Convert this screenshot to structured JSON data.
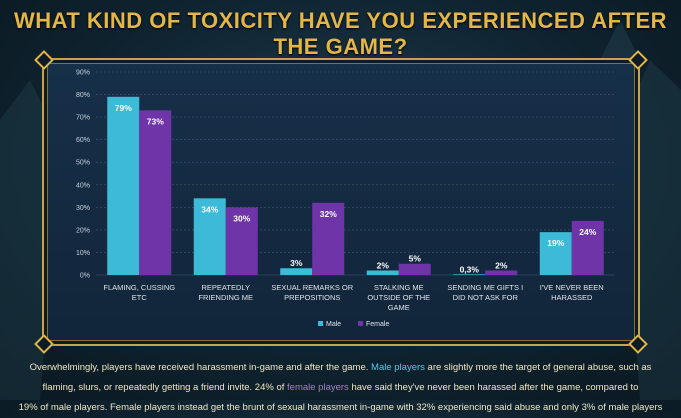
{
  "title": "WHAT KIND OF TOXICITY HAVE YOU EXPERIENCED AFTER THE GAME?",
  "colors": {
    "male": "#3dbad8",
    "female": "#6f35a8",
    "accent": "#e2b648",
    "frame": "#c9a24a"
  },
  "chart_data": {
    "type": "bar",
    "categories": [
      [
        "FLAMING, CUSSING",
        "ETC"
      ],
      [
        "REPEATEDLY",
        "FRIENDING ME"
      ],
      [
        "SEXUAL REMARKS OR",
        "PREPOSITIONS"
      ],
      [
        "STALKING ME",
        "OUTSIDE OF THE",
        "GAME"
      ],
      [
        "SENDING ME GIFTS I",
        "DID NOT ASK FOR"
      ],
      [
        "I'VE NEVER BEEN",
        "HARASSED"
      ]
    ],
    "series": [
      {
        "name": "Male",
        "values": [
          79,
          34,
          3,
          2,
          0.3,
          19
        ],
        "labels": [
          "79%",
          "34%",
          "3%",
          "2%",
          "0,3%",
          "19%"
        ]
      },
      {
        "name": "Female",
        "values": [
          73,
          30,
          32,
          5,
          2,
          24
        ],
        "labels": [
          "73%",
          "30%",
          "32%",
          "5%",
          "2%",
          "24%"
        ]
      }
    ],
    "ylim": [
      0,
      90
    ],
    "yticks": [
      "0%",
      "10%",
      "20%",
      "30%",
      "40%",
      "50%",
      "60%",
      "70%",
      "80%",
      "90%"
    ],
    "grid": true,
    "legend_position": "bottom-center"
  },
  "description": {
    "line1_pre": "Overwhelmingly, players have received harassment in-game and after the game. ",
    "line1_male": "Male players",
    "line1_post": " are slightly more the target of general abuse, such as",
    "line2_pre": "flaming, slurs, or repeatedly getting a friend invite. 24% of ",
    "line2_female": "female players",
    "line2_post": " have said they've never been harassed after the game, compared to",
    "line3": "19% of male players. Female players instead get the brunt of sexual harassment in-game with 32% experiencing said abuse and only 3% of male players"
  }
}
